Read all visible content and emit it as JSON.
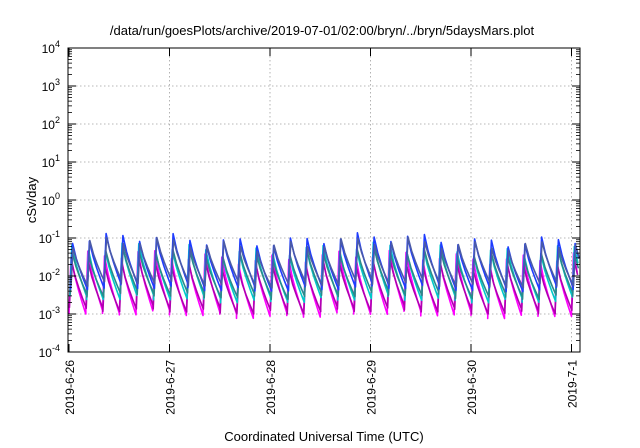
{
  "chart_data": {
    "type": "line",
    "title": "/data/run/goesPlots/archive/2019-07-01/02:00/bryn/../bryn/5daysMars.plot",
    "xlabel": "Coordinated Universal Time (UTC)",
    "ylabel": "cSv/day",
    "y_scale": "log",
    "ylim_exponent": [
      -4,
      4
    ],
    "y_ticks": [
      {
        "base": "10",
        "exp": "4"
      },
      {
        "base": "10",
        "exp": "3"
      },
      {
        "base": "10",
        "exp": "2"
      },
      {
        "base": "10",
        "exp": "1"
      },
      {
        "base": "10",
        "exp": "0"
      },
      {
        "base": "10",
        "exp": "-1"
      },
      {
        "base": "10",
        "exp": "-2"
      },
      {
        "base": "10",
        "exp": "-3"
      },
      {
        "base": "10",
        "exp": "-4"
      }
    ],
    "x_ticks": [
      "2019-6-26",
      "2019-6-27",
      "2019-6-28",
      "2019-6-29",
      "2019-6-30",
      "2019-7-1"
    ],
    "xlim_days": [
      "2019-06-26",
      "2019-07-01 02:00"
    ],
    "grid": true,
    "cycle_hours": 4,
    "series": [
      {
        "color": "#ff00ff",
        "peak_log10": -1.5,
        "trough_log10": -3.0
      },
      {
        "color": "#b000b0",
        "peak_log10": -1.7,
        "trough_log10": -2.9
      },
      {
        "color": "#00c8c8",
        "peak_log10": -1.3,
        "trough_log10": -2.6
      },
      {
        "color": "#2a8a8a",
        "peak_log10": -1.4,
        "trough_log10": -2.5
      },
      {
        "color": "#1e3cff",
        "peak_log10": -1.05,
        "trough_log10": -2.3
      },
      {
        "color": "#4a5aa8",
        "peak_log10": -1.15,
        "trough_log10": -2.2
      }
    ]
  }
}
